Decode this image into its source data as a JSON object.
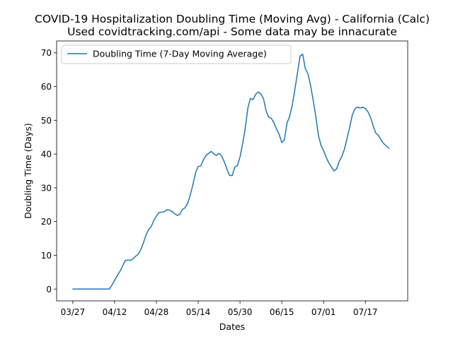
{
  "chart_data": {
    "type": "line",
    "title": "COVID-19 Hospitalization Doubling Time (Moving Avg) - California (Calc)",
    "subtitle": "Used covidtracking.com/api - Some data may be innacurate",
    "xlabel": "Dates",
    "ylabel": "Doubling Time (Days)",
    "ylim": [
      -3.5,
      73.5
    ],
    "yticks": [
      0,
      10,
      20,
      30,
      40,
      50,
      60,
      70
    ],
    "xticks": [
      {
        "label": "03/27",
        "day": 0
      },
      {
        "label": "04/12",
        "day": 16
      },
      {
        "label": "04/28",
        "day": 32
      },
      {
        "label": "05/14",
        "day": 48
      },
      {
        "label": "05/30",
        "day": 64
      },
      {
        "label": "06/15",
        "day": 80
      },
      {
        "label": "07/01",
        "day": 96
      },
      {
        "label": "07/17",
        "day": 112
      }
    ],
    "xlim": [
      -6.2,
      128.2
    ],
    "legend": {
      "position": "top-left"
    },
    "grid": false,
    "series": [
      {
        "name": "Doubling Time (7-Day Moving Average)",
        "color": "#1f77b4",
        "points": [
          [
            0,
            0
          ],
          [
            1,
            0
          ],
          [
            2,
            0
          ],
          [
            3,
            0
          ],
          [
            4,
            0
          ],
          [
            5,
            0
          ],
          [
            6,
            0
          ],
          [
            7,
            0
          ],
          [
            8,
            0
          ],
          [
            9,
            0
          ],
          [
            10,
            0
          ],
          [
            11,
            0
          ],
          [
            12,
            0
          ],
          [
            13,
            0
          ],
          [
            14,
            0
          ],
          [
            15,
            1.2
          ],
          [
            16,
            2.6
          ],
          [
            17,
            3.9
          ],
          [
            18,
            5.2
          ],
          [
            19,
            6.7
          ],
          [
            20,
            8.4
          ],
          [
            21,
            8.6
          ],
          [
            22,
            8.5
          ],
          [
            23,
            8.9
          ],
          [
            24,
            9.7
          ],
          [
            25,
            10.3
          ],
          [
            26,
            11.6
          ],
          [
            27,
            13.6
          ],
          [
            28,
            16.0
          ],
          [
            29,
            17.6
          ],
          [
            30,
            18.5
          ],
          [
            31,
            20.3
          ],
          [
            32,
            21.6
          ],
          [
            33,
            22.7
          ],
          [
            34,
            22.8
          ],
          [
            35,
            22.9
          ],
          [
            36,
            23.5
          ],
          [
            37,
            23.4
          ],
          [
            38,
            23.0
          ],
          [
            39,
            22.3
          ],
          [
            40,
            21.8
          ],
          [
            41,
            22.2
          ],
          [
            42,
            23.6
          ],
          [
            43,
            24.1
          ],
          [
            44,
            25.5
          ],
          [
            45,
            28.0
          ],
          [
            46,
            31.0
          ],
          [
            47,
            34.5
          ],
          [
            48,
            36.3
          ],
          [
            49,
            36.5
          ],
          [
            50,
            38.3
          ],
          [
            51,
            39.6
          ],
          [
            52,
            40.2
          ],
          [
            53,
            40.8
          ],
          [
            54,
            40.0
          ],
          [
            55,
            39.6
          ],
          [
            56,
            40.2
          ],
          [
            57,
            39.4
          ],
          [
            58,
            37.7
          ],
          [
            59,
            35.5
          ],
          [
            60,
            33.7
          ],
          [
            61,
            33.6
          ],
          [
            62,
            36.1
          ],
          [
            63,
            36.6
          ],
          [
            64,
            39.1
          ],
          [
            65,
            43.0
          ],
          [
            66,
            47.6
          ],
          [
            67,
            53.6
          ],
          [
            68,
            56.5
          ],
          [
            69,
            56.1
          ],
          [
            70,
            57.7
          ],
          [
            71,
            58.4
          ],
          [
            72,
            57.8
          ],
          [
            73,
            56.4
          ],
          [
            74,
            52.8
          ],
          [
            75,
            50.9
          ],
          [
            76,
            50.6
          ],
          [
            77,
            49.2
          ],
          [
            78,
            47.4
          ],
          [
            79,
            45.8
          ],
          [
            80,
            43.4
          ],
          [
            81,
            44.2
          ],
          [
            82,
            49.2
          ],
          [
            83,
            51.1
          ],
          [
            84,
            54.5
          ],
          [
            85,
            59.1
          ],
          [
            86,
            64.0
          ],
          [
            87,
            69.0
          ],
          [
            88,
            69.6
          ],
          [
            89,
            65.3
          ],
          [
            90,
            63.8
          ],
          [
            91,
            60.4
          ],
          [
            92,
            56.0
          ],
          [
            93,
            51.2
          ],
          [
            94,
            45.6
          ],
          [
            95,
            42.6
          ],
          [
            96,
            41.0
          ],
          [
            97,
            39.0
          ],
          [
            98,
            37.4
          ],
          [
            99,
            36.1
          ],
          [
            100,
            35.0
          ],
          [
            101,
            35.6
          ],
          [
            102,
            37.9
          ],
          [
            103,
            39.3
          ],
          [
            104,
            41.5
          ],
          [
            105,
            44.7
          ],
          [
            106,
            48.0
          ],
          [
            107,
            51.6
          ],
          [
            108,
            53.4
          ],
          [
            109,
            53.9
          ],
          [
            110,
            53.6
          ],
          [
            111,
            53.9
          ],
          [
            112,
            53.5
          ],
          [
            113,
            52.5
          ],
          [
            114,
            50.8
          ],
          [
            115,
            48.3
          ],
          [
            116,
            46.2
          ],
          [
            117,
            45.5
          ],
          [
            118,
            44.2
          ],
          [
            119,
            43.1
          ],
          [
            120,
            42.4
          ],
          [
            121,
            41.7
          ]
        ]
      }
    ]
  }
}
